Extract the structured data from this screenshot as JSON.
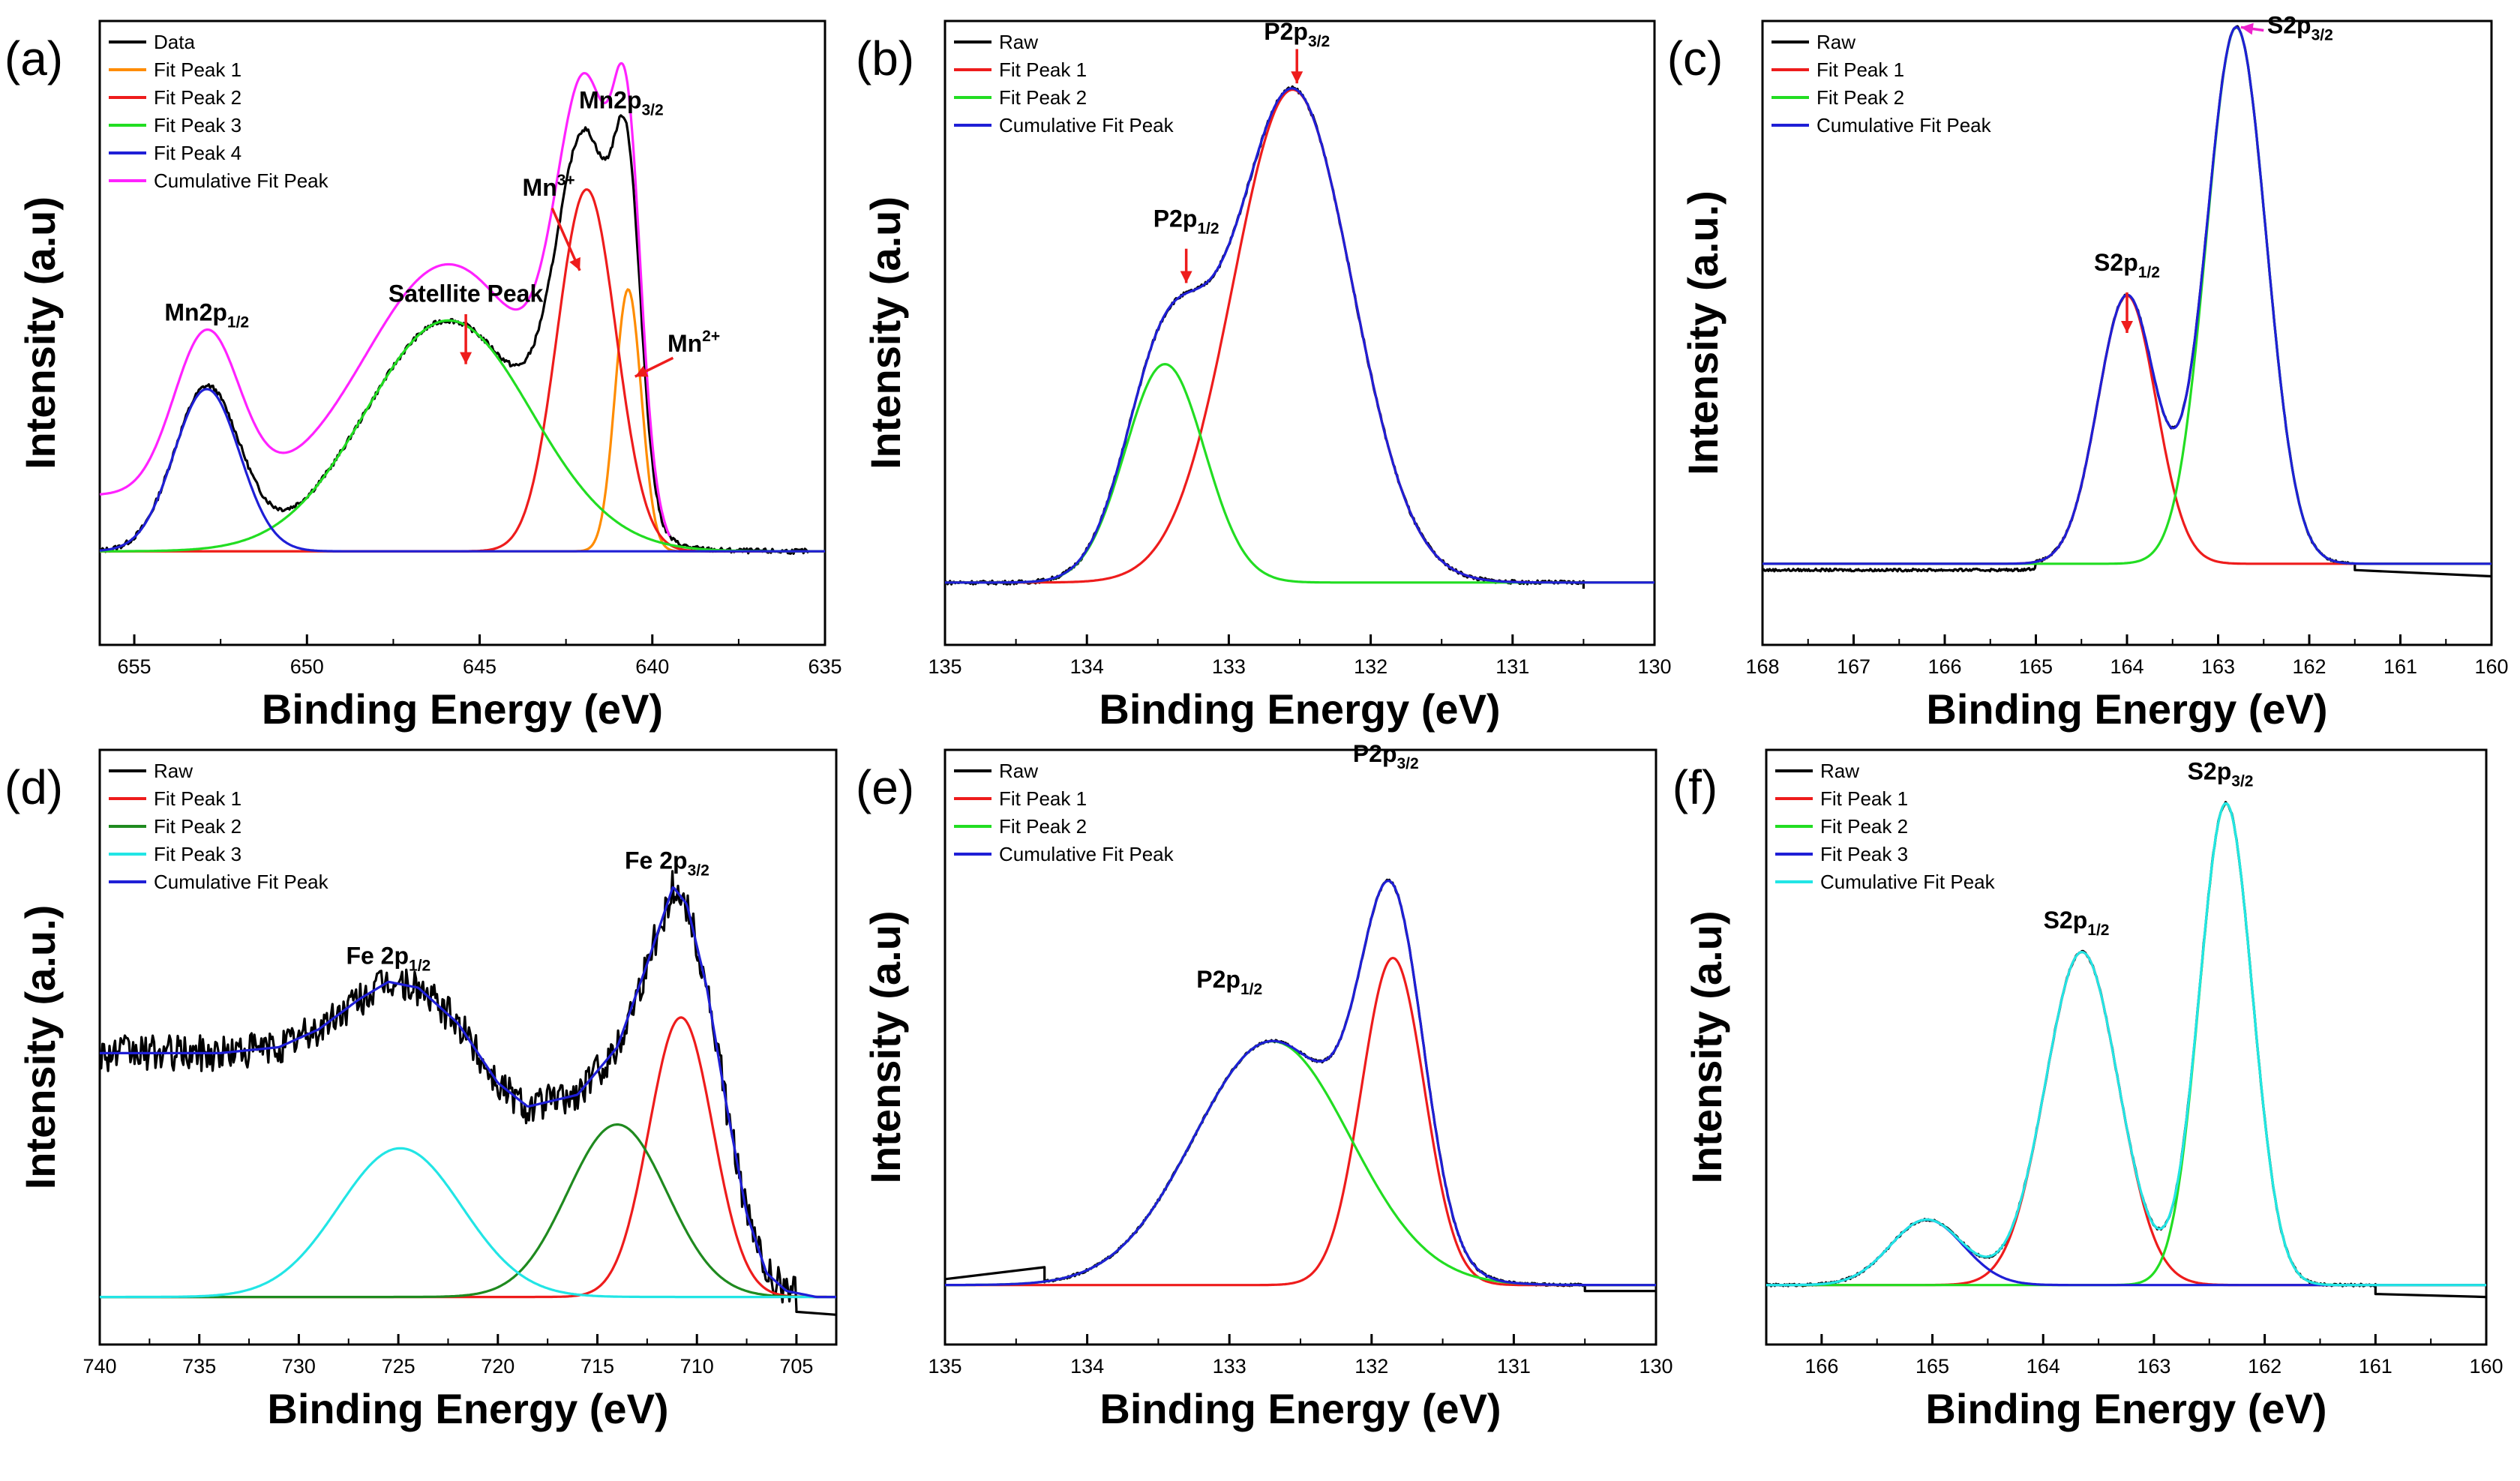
{
  "figure": {
    "colors": {
      "black": "#000000",
      "orange": "#ff8c00",
      "red": "#ee1c1c",
      "green": "#22dd22",
      "darkgreen": "#1f8a1f",
      "blue": "#1f1fd6",
      "magenta": "#ff22ff",
      "cyan": "#22e5e5",
      "arrow": "#ee1c1c",
      "arrow_magenta": "#ee22cc"
    }
  },
  "chart_data": [
    {
      "panel": "(a)",
      "type": "line",
      "xlabel": "Binding Energy (eV)",
      "ylabel": "Intensity (a.u)",
      "xlim": [
        656,
        635
      ],
      "ylim": [
        0,
        1
      ],
      "xticks": [
        655,
        650,
        645,
        640,
        635
      ],
      "baseline": 0.15,
      "legend": [
        "Data",
        "Fit Peak 1",
        "Fit Peak 2",
        "Fit Peak 3",
        "Fit Peak 4",
        "Cumulative Fit Peak"
      ],
      "series": [
        {
          "name": "Data",
          "color": "black",
          "kind": "sum_raw",
          "noise": 0.004,
          "tail": [
            {
              "x": 635.5,
              "y": 0.15
            }
          ]
        },
        {
          "name": "Fit Peak 1",
          "color": "orange",
          "kind": "peak",
          "center": 640.7,
          "height": 0.42,
          "sigma": 0.38
        },
        {
          "name": "Fit Peak 2",
          "color": "red",
          "kind": "peak",
          "center": 641.9,
          "height": 0.58,
          "sigma": 0.85
        },
        {
          "name": "Fit Peak 3",
          "color": "green",
          "kind": "peak",
          "center": 645.9,
          "height": 0.37,
          "sigma": 2.4
        },
        {
          "name": "Fit Peak 4",
          "color": "blue",
          "kind": "peak",
          "center": 652.9,
          "height": 0.26,
          "sigma": 0.95
        },
        {
          "name": "Cumulative Fit Peak",
          "color": "magenta",
          "kind": "sum",
          "extra_baseline": 0.09,
          "range": [
            656,
            639.5
          ]
        }
      ],
      "annotations": [
        {
          "main": "Mn2p",
          "sub": "1/2",
          "x": 652.9,
          "y": 0.52
        },
        {
          "main": "Satellite Peak",
          "sub": "",
          "x": 645.4,
          "y": 0.55,
          "arrow": {
            "x": 645.4,
            "from": 0.53,
            "to": 0.45
          }
        },
        {
          "main": "Mn",
          "sup": "3+",
          "x": 643.0,
          "y": 0.72,
          "arrow": {
            "fx": 642.9,
            "fy": 0.7,
            "tx": 642.1,
            "ty": 0.6
          }
        },
        {
          "main": "Mn2p",
          "sub": "3/2",
          "x": 640.9,
          "y": 0.86
        },
        {
          "main": "Mn",
          "sup": "2+",
          "x": 638.8,
          "y": 0.47,
          "arrow": {
            "fx": 639.4,
            "fy": 0.46,
            "tx": 640.5,
            "ty": 0.43
          }
        }
      ]
    },
    {
      "panel": "(b)",
      "type": "line",
      "xlabel": "Binding Energy (eV)",
      "ylabel": "Intensity (a.u)",
      "xlim": [
        135,
        130
      ],
      "ylim": [
        0,
        1
      ],
      "xticks": [
        135,
        134,
        133,
        132,
        131,
        130
      ],
      "baseline": 0.1,
      "legend": [
        "Raw",
        "Fit Peak 1",
        "Fit Peak 2",
        "Cumulative Fit Peak"
      ],
      "series": [
        {
          "name": "Raw",
          "color": "black",
          "kind": "sum_raw",
          "noise": 0.003,
          "tail": [
            {
              "x": 130.5,
              "y": 0.09
            }
          ]
        },
        {
          "name": "Fit Peak 1",
          "color": "red",
          "kind": "peak",
          "center": 132.55,
          "height": 0.79,
          "sigma": 0.42
        },
        {
          "name": "Fit Peak 2",
          "color": "green",
          "kind": "peak",
          "center": 133.45,
          "height": 0.35,
          "sigma": 0.28
        },
        {
          "name": "Cumulative Fit Peak",
          "color": "blue",
          "kind": "sum"
        }
      ],
      "annotations": [
        {
          "main": "P2p",
          "sub": "3/2",
          "x": 132.52,
          "y": 0.97,
          "arrow": {
            "x": 132.52,
            "from": 0.955,
            "to": 0.9
          }
        },
        {
          "main": "P2p",
          "sub": "1/2",
          "x": 133.3,
          "y": 0.67,
          "arrow": {
            "x": 133.3,
            "from": 0.635,
            "to": 0.58
          }
        }
      ]
    },
    {
      "panel": "(c)",
      "type": "line",
      "xlabel": "Binding Energy (eV)",
      "ylabel": "Intensity (a.u.)",
      "xlim": [
        168,
        160
      ],
      "ylim": [
        0,
        1
      ],
      "xticks": [
        168,
        167,
        166,
        165,
        164,
        163,
        162,
        161,
        160
      ],
      "baseline": 0.13,
      "legend": [
        "Raw",
        "Fit Peak 1",
        "Fit Peak 2",
        "Cumulative Fit Peak"
      ],
      "series": [
        {
          "name": "Raw",
          "color": "black",
          "kind": "sum_raw",
          "noise": 0.002,
          "offset_left": -0.01,
          "tail": [
            {
              "x": 161.5,
              "y": 0.12
            },
            {
              "x": 160,
              "y": 0.11
            }
          ]
        },
        {
          "name": "Fit Peak 1",
          "color": "red",
          "kind": "peak",
          "center": 164.0,
          "height": 0.43,
          "sigma": 0.32
        },
        {
          "name": "Fit Peak 2",
          "color": "green",
          "kind": "peak",
          "center": 162.8,
          "height": 0.86,
          "sigma": 0.33
        },
        {
          "name": "Cumulative Fit Peak",
          "color": "blue",
          "kind": "sum"
        }
      ],
      "annotations": [
        {
          "main": "S2p",
          "sub": "3/2",
          "x": 162.1,
          "y": 0.98,
          "arrow": {
            "fx": 162.5,
            "fy": 0.985,
            "tx": 162.75,
            "ty": 0.99,
            "color": "arrow_magenta"
          }
        },
        {
          "main": "S2p",
          "sub": "1/2",
          "x": 164.0,
          "y": 0.6,
          "arrow": {
            "x": 164.0,
            "from": 0.565,
            "to": 0.5
          }
        }
      ]
    },
    {
      "panel": "(d)",
      "type": "line",
      "xlabel": "Binding Energy (eV)",
      "ylabel": "Intensity (a.u.)",
      "xlim": [
        740,
        703
      ],
      "ylim": [
        0,
        1
      ],
      "xticks": [
        740,
        735,
        730,
        725,
        720,
        715,
        710,
        705
      ],
      "baseline": 0.08,
      "legend": [
        "Raw",
        "Fit Peak 1",
        "Fit Peak 2",
        "Fit Peak 3",
        "Cumulative Fit Peak"
      ],
      "series": [
        {
          "name": "Raw",
          "color": "black",
          "kind": "cum_raw",
          "noise": 0.03,
          "tail": [
            {
              "x": 705,
              "y": 0.055
            },
            {
              "x": 703,
              "y": 0.05
            }
          ]
        },
        {
          "name": "Fit Peak 1",
          "color": "red",
          "kind": "peak",
          "center": 710.8,
          "height": 0.47,
          "sigma": 1.6
        },
        {
          "name": "Fit Peak 2",
          "color": "darkgreen",
          "kind": "peak",
          "center": 714.0,
          "height": 0.29,
          "sigma": 2.5
        },
        {
          "name": "Fit Peak 3",
          "color": "cyan",
          "kind": "peak",
          "center": 724.9,
          "height": 0.25,
          "sigma": 3.1
        },
        {
          "name": "Cumulative Fit Peak",
          "color": "blue",
          "kind": "cum",
          "range": [
            740,
            703
          ],
          "points": [
            [
              740,
              0.49
            ],
            [
              737,
              0.49
            ],
            [
              734,
              0.49
            ],
            [
              731,
              0.5
            ],
            [
              729,
              0.53
            ],
            [
              727,
              0.58
            ],
            [
              725.5,
              0.61
            ],
            [
              724,
              0.6
            ],
            [
              722,
              0.54
            ],
            [
              720,
              0.44
            ],
            [
              718.5,
              0.4
            ],
            [
              716,
              0.42
            ],
            [
              714,
              0.5
            ],
            [
              712.5,
              0.64
            ],
            [
              711.2,
              0.77
            ],
            [
              710.5,
              0.74
            ],
            [
              709.5,
              0.6
            ],
            [
              708.5,
              0.4
            ],
            [
              707.5,
              0.22
            ],
            [
              706.5,
              0.12
            ],
            [
              705.5,
              0.09
            ],
            [
              704,
              0.08
            ],
            [
              703,
              0.08
            ]
          ]
        }
      ],
      "annotations": [
        {
          "main": "Fe 2p",
          "sub": "3/2",
          "x": 711.5,
          "y": 0.8
        },
        {
          "main": "Fe 2p",
          "sub": "1/2",
          "x": 725.5,
          "y": 0.64
        }
      ]
    },
    {
      "panel": "(e)",
      "type": "line",
      "xlabel": "Binding Energy (eV)",
      "ylabel": "Intensity (a.u)",
      "xlim": [
        135,
        130
      ],
      "ylim": [
        0,
        1
      ],
      "xticks": [
        135,
        134,
        133,
        132,
        131,
        130
      ],
      "baseline": 0.1,
      "legend": [
        "Raw",
        "Fit Peak 1",
        "Fit Peak 2",
        "Cumulative Fit Peak"
      ],
      "series": [
        {
          "name": "Raw",
          "color": "black",
          "kind": "sum_raw",
          "noise": 0.002,
          "head": [
            {
              "x": 135,
              "y": 0.11
            },
            {
              "x": 134.3,
              "y": 0.13
            }
          ],
          "tail": [
            {
              "x": 130.5,
              "y": 0.09
            },
            {
              "x": 130,
              "y": 0.09
            }
          ]
        },
        {
          "name": "Fit Peak 1",
          "color": "red",
          "kind": "peak",
          "center": 131.85,
          "height": 0.55,
          "sigma": 0.22
        },
        {
          "name": "Fit Peak 2",
          "color": "green",
          "kind": "peak",
          "center": 132.7,
          "height": 0.41,
          "sigma": 0.55
        },
        {
          "name": "Cumulative Fit Peak",
          "color": "blue",
          "kind": "sum"
        }
      ],
      "annotations": [
        {
          "main": "P2p",
          "sub": "3/2",
          "x": 131.9,
          "y": 0.98
        },
        {
          "main": "P2p",
          "sub": "1/2",
          "x": 133.0,
          "y": 0.6
        }
      ]
    },
    {
      "panel": "(f)",
      "type": "line",
      "xlabel": "Binding Energy (eV)",
      "ylabel": "Intensity (a.u)",
      "xlim": [
        166.5,
        160
      ],
      "ylim": [
        0,
        1
      ],
      "xticks": [
        166,
        165,
        164,
        163,
        162,
        161,
        160
      ],
      "baseline": 0.1,
      "legend": [
        "Raw",
        "Fit Peak 1",
        "Fit Peak 2",
        "Fit Peak 3",
        "Cumulative Fit Peak"
      ],
      "series": [
        {
          "name": "Raw",
          "color": "black",
          "kind": "sum_raw",
          "noise": 0.002,
          "tail": [
            {
              "x": 161,
              "y": 0.085
            },
            {
              "x": 160,
              "y": 0.08
            }
          ]
        },
        {
          "name": "Fit Peak 1",
          "color": "red",
          "kind": "peak",
          "center": 163.65,
          "height": 0.56,
          "sigma": 0.33
        },
        {
          "name": "Fit Peak 2",
          "color": "green",
          "kind": "peak",
          "center": 162.35,
          "height": 0.81,
          "sigma": 0.24
        },
        {
          "name": "Fit Peak 3",
          "color": "blue",
          "kind": "peak",
          "center": 165.05,
          "height": 0.11,
          "sigma": 0.33
        },
        {
          "name": "Cumulative Fit Peak",
          "color": "cyan",
          "kind": "sum"
        }
      ],
      "annotations": [
        {
          "main": "S2p",
          "sub": "3/2",
          "x": 162.4,
          "y": 0.95
        },
        {
          "main": "S2p",
          "sub": "1/2",
          "x": 163.7,
          "y": 0.7
        }
      ]
    }
  ]
}
